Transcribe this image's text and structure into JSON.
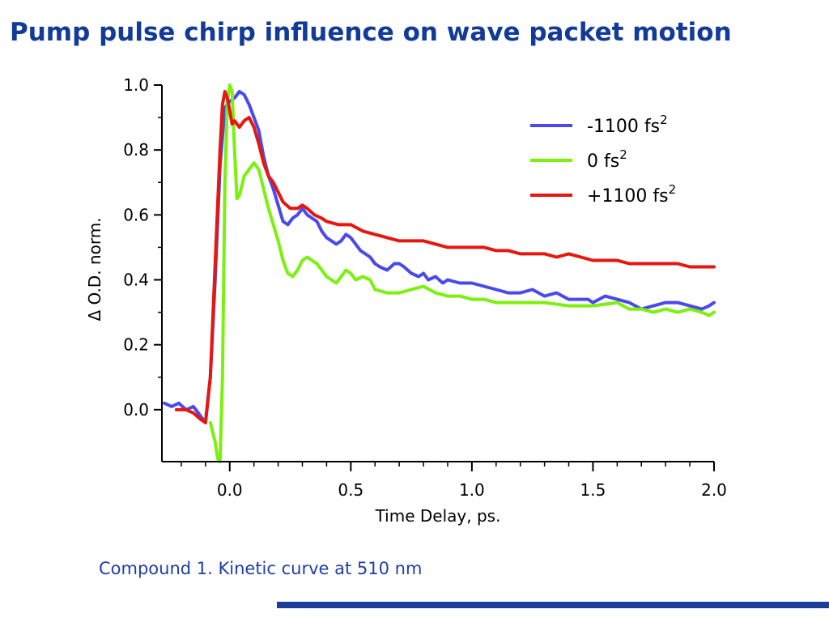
{
  "slide": {
    "title": "Pump pulse chirp influence on wave packet motion",
    "caption": "Compound 1. Kinetic curve at 510 nm"
  },
  "colors": {
    "title": "#123a96",
    "caption": "#1f3fa8",
    "footer_bar": "#1b3c99"
  },
  "chart_data": {
    "type": "line",
    "title": "",
    "xlabel": "Time Delay, ps.",
    "ylabel": "Δ O.D. norm.",
    "xlim": [
      -0.28,
      2.0
    ],
    "ylim": [
      -0.16,
      1.0
    ],
    "xticks": [
      0.0,
      0.5,
      1.0,
      1.5,
      2.0
    ],
    "xtick_labels": [
      "0.0",
      "0.5",
      "1.0",
      "1.5",
      "2.0"
    ],
    "yticks": [
      0.0,
      0.2,
      0.4,
      0.6,
      0.8,
      1.0
    ],
    "ytick_labels": [
      "0.0",
      "0.2",
      "0.4",
      "0.6",
      "0.8",
      "1.0"
    ],
    "grid": false,
    "legend_position": "top-right",
    "series": [
      {
        "name": "-1100 fs",
        "superscript": "2",
        "color": "#4a4aec",
        "x": [
          -0.27,
          -0.24,
          -0.21,
          -0.18,
          -0.15,
          -0.12,
          -0.1,
          -0.08,
          -0.06,
          -0.04,
          -0.02,
          0.0,
          0.02,
          0.04,
          0.06,
          0.08,
          0.1,
          0.12,
          0.14,
          0.16,
          0.18,
          0.2,
          0.22,
          0.24,
          0.26,
          0.28,
          0.3,
          0.32,
          0.34,
          0.36,
          0.38,
          0.4,
          0.42,
          0.44,
          0.46,
          0.48,
          0.5,
          0.52,
          0.54,
          0.56,
          0.58,
          0.6,
          0.62,
          0.65,
          0.68,
          0.7,
          0.72,
          0.75,
          0.78,
          0.8,
          0.82,
          0.85,
          0.88,
          0.9,
          0.95,
          1.0,
          1.05,
          1.1,
          1.15,
          1.2,
          1.25,
          1.3,
          1.35,
          1.4,
          1.45,
          1.48,
          1.5,
          1.55,
          1.6,
          1.65,
          1.7,
          1.75,
          1.8,
          1.85,
          1.9,
          1.95,
          1.98,
          2.0
        ],
        "y": [
          0.02,
          0.01,
          0.02,
          0.0,
          0.01,
          -0.02,
          -0.04,
          0.1,
          0.4,
          0.75,
          0.93,
          0.95,
          0.96,
          0.98,
          0.97,
          0.94,
          0.9,
          0.86,
          0.78,
          0.72,
          0.68,
          0.63,
          0.58,
          0.57,
          0.59,
          0.6,
          0.62,
          0.6,
          0.59,
          0.58,
          0.55,
          0.53,
          0.52,
          0.51,
          0.52,
          0.54,
          0.53,
          0.51,
          0.49,
          0.48,
          0.47,
          0.45,
          0.44,
          0.43,
          0.45,
          0.45,
          0.44,
          0.42,
          0.41,
          0.42,
          0.4,
          0.41,
          0.39,
          0.4,
          0.39,
          0.39,
          0.38,
          0.37,
          0.36,
          0.36,
          0.37,
          0.35,
          0.36,
          0.34,
          0.34,
          0.34,
          0.33,
          0.35,
          0.34,
          0.33,
          0.31,
          0.32,
          0.33,
          0.33,
          0.32,
          0.31,
          0.32,
          0.33
        ]
      },
      {
        "name": "0 fs",
        "superscript": "2",
        "color": "#7cf00e",
        "x": [
          -0.08,
          -0.06,
          -0.05,
          -0.04,
          -0.03,
          -0.02,
          -0.01,
          0.0,
          0.01,
          0.02,
          0.03,
          0.04,
          0.06,
          0.08,
          0.1,
          0.12,
          0.14,
          0.16,
          0.18,
          0.2,
          0.22,
          0.24,
          0.26,
          0.28,
          0.3,
          0.32,
          0.34,
          0.36,
          0.38,
          0.4,
          0.42,
          0.44,
          0.46,
          0.48,
          0.5,
          0.52,
          0.55,
          0.58,
          0.6,
          0.65,
          0.7,
          0.75,
          0.8,
          0.85,
          0.9,
          0.95,
          1.0,
          1.05,
          1.1,
          1.15,
          1.2,
          1.3,
          1.4,
          1.5,
          1.6,
          1.65,
          1.7,
          1.75,
          1.8,
          1.85,
          1.9,
          1.95,
          1.98,
          2.0
        ],
        "y": [
          -0.04,
          -0.1,
          -0.15,
          -0.16,
          0.1,
          0.7,
          0.95,
          1.0,
          0.98,
          0.8,
          0.65,
          0.66,
          0.72,
          0.74,
          0.76,
          0.74,
          0.68,
          0.62,
          0.57,
          0.52,
          0.46,
          0.42,
          0.41,
          0.43,
          0.46,
          0.47,
          0.46,
          0.45,
          0.43,
          0.41,
          0.4,
          0.39,
          0.41,
          0.43,
          0.42,
          0.4,
          0.41,
          0.4,
          0.37,
          0.36,
          0.36,
          0.37,
          0.38,
          0.36,
          0.35,
          0.35,
          0.34,
          0.34,
          0.33,
          0.33,
          0.33,
          0.33,
          0.32,
          0.32,
          0.33,
          0.31,
          0.31,
          0.3,
          0.31,
          0.3,
          0.31,
          0.3,
          0.29,
          0.3
        ]
      },
      {
        "name": "+1100 fs",
        "superscript": "2",
        "color": "#e5170f",
        "x": [
          -0.22,
          -0.18,
          -0.15,
          -0.12,
          -0.1,
          -0.08,
          -0.06,
          -0.04,
          -0.03,
          -0.02,
          -0.01,
          0.0,
          0.01,
          0.02,
          0.04,
          0.06,
          0.08,
          0.1,
          0.12,
          0.14,
          0.16,
          0.18,
          0.2,
          0.22,
          0.25,
          0.28,
          0.3,
          0.32,
          0.35,
          0.38,
          0.4,
          0.45,
          0.5,
          0.55,
          0.6,
          0.65,
          0.7,
          0.75,
          0.8,
          0.85,
          0.9,
          0.95,
          1.0,
          1.05,
          1.1,
          1.15,
          1.2,
          1.25,
          1.3,
          1.35,
          1.4,
          1.45,
          1.5,
          1.55,
          1.6,
          1.65,
          1.7,
          1.75,
          1.8,
          1.85,
          1.9,
          1.95,
          2.0
        ],
        "y": [
          0.0,
          0.0,
          -0.01,
          -0.03,
          -0.04,
          0.1,
          0.45,
          0.8,
          0.94,
          0.98,
          0.96,
          0.92,
          0.88,
          0.89,
          0.87,
          0.89,
          0.9,
          0.87,
          0.82,
          0.76,
          0.72,
          0.7,
          0.67,
          0.64,
          0.62,
          0.62,
          0.63,
          0.62,
          0.6,
          0.59,
          0.58,
          0.57,
          0.57,
          0.55,
          0.54,
          0.53,
          0.52,
          0.52,
          0.52,
          0.51,
          0.5,
          0.5,
          0.5,
          0.5,
          0.49,
          0.49,
          0.48,
          0.48,
          0.48,
          0.47,
          0.48,
          0.47,
          0.46,
          0.46,
          0.46,
          0.45,
          0.45,
          0.45,
          0.45,
          0.45,
          0.44,
          0.44,
          0.44
        ]
      }
    ]
  }
}
